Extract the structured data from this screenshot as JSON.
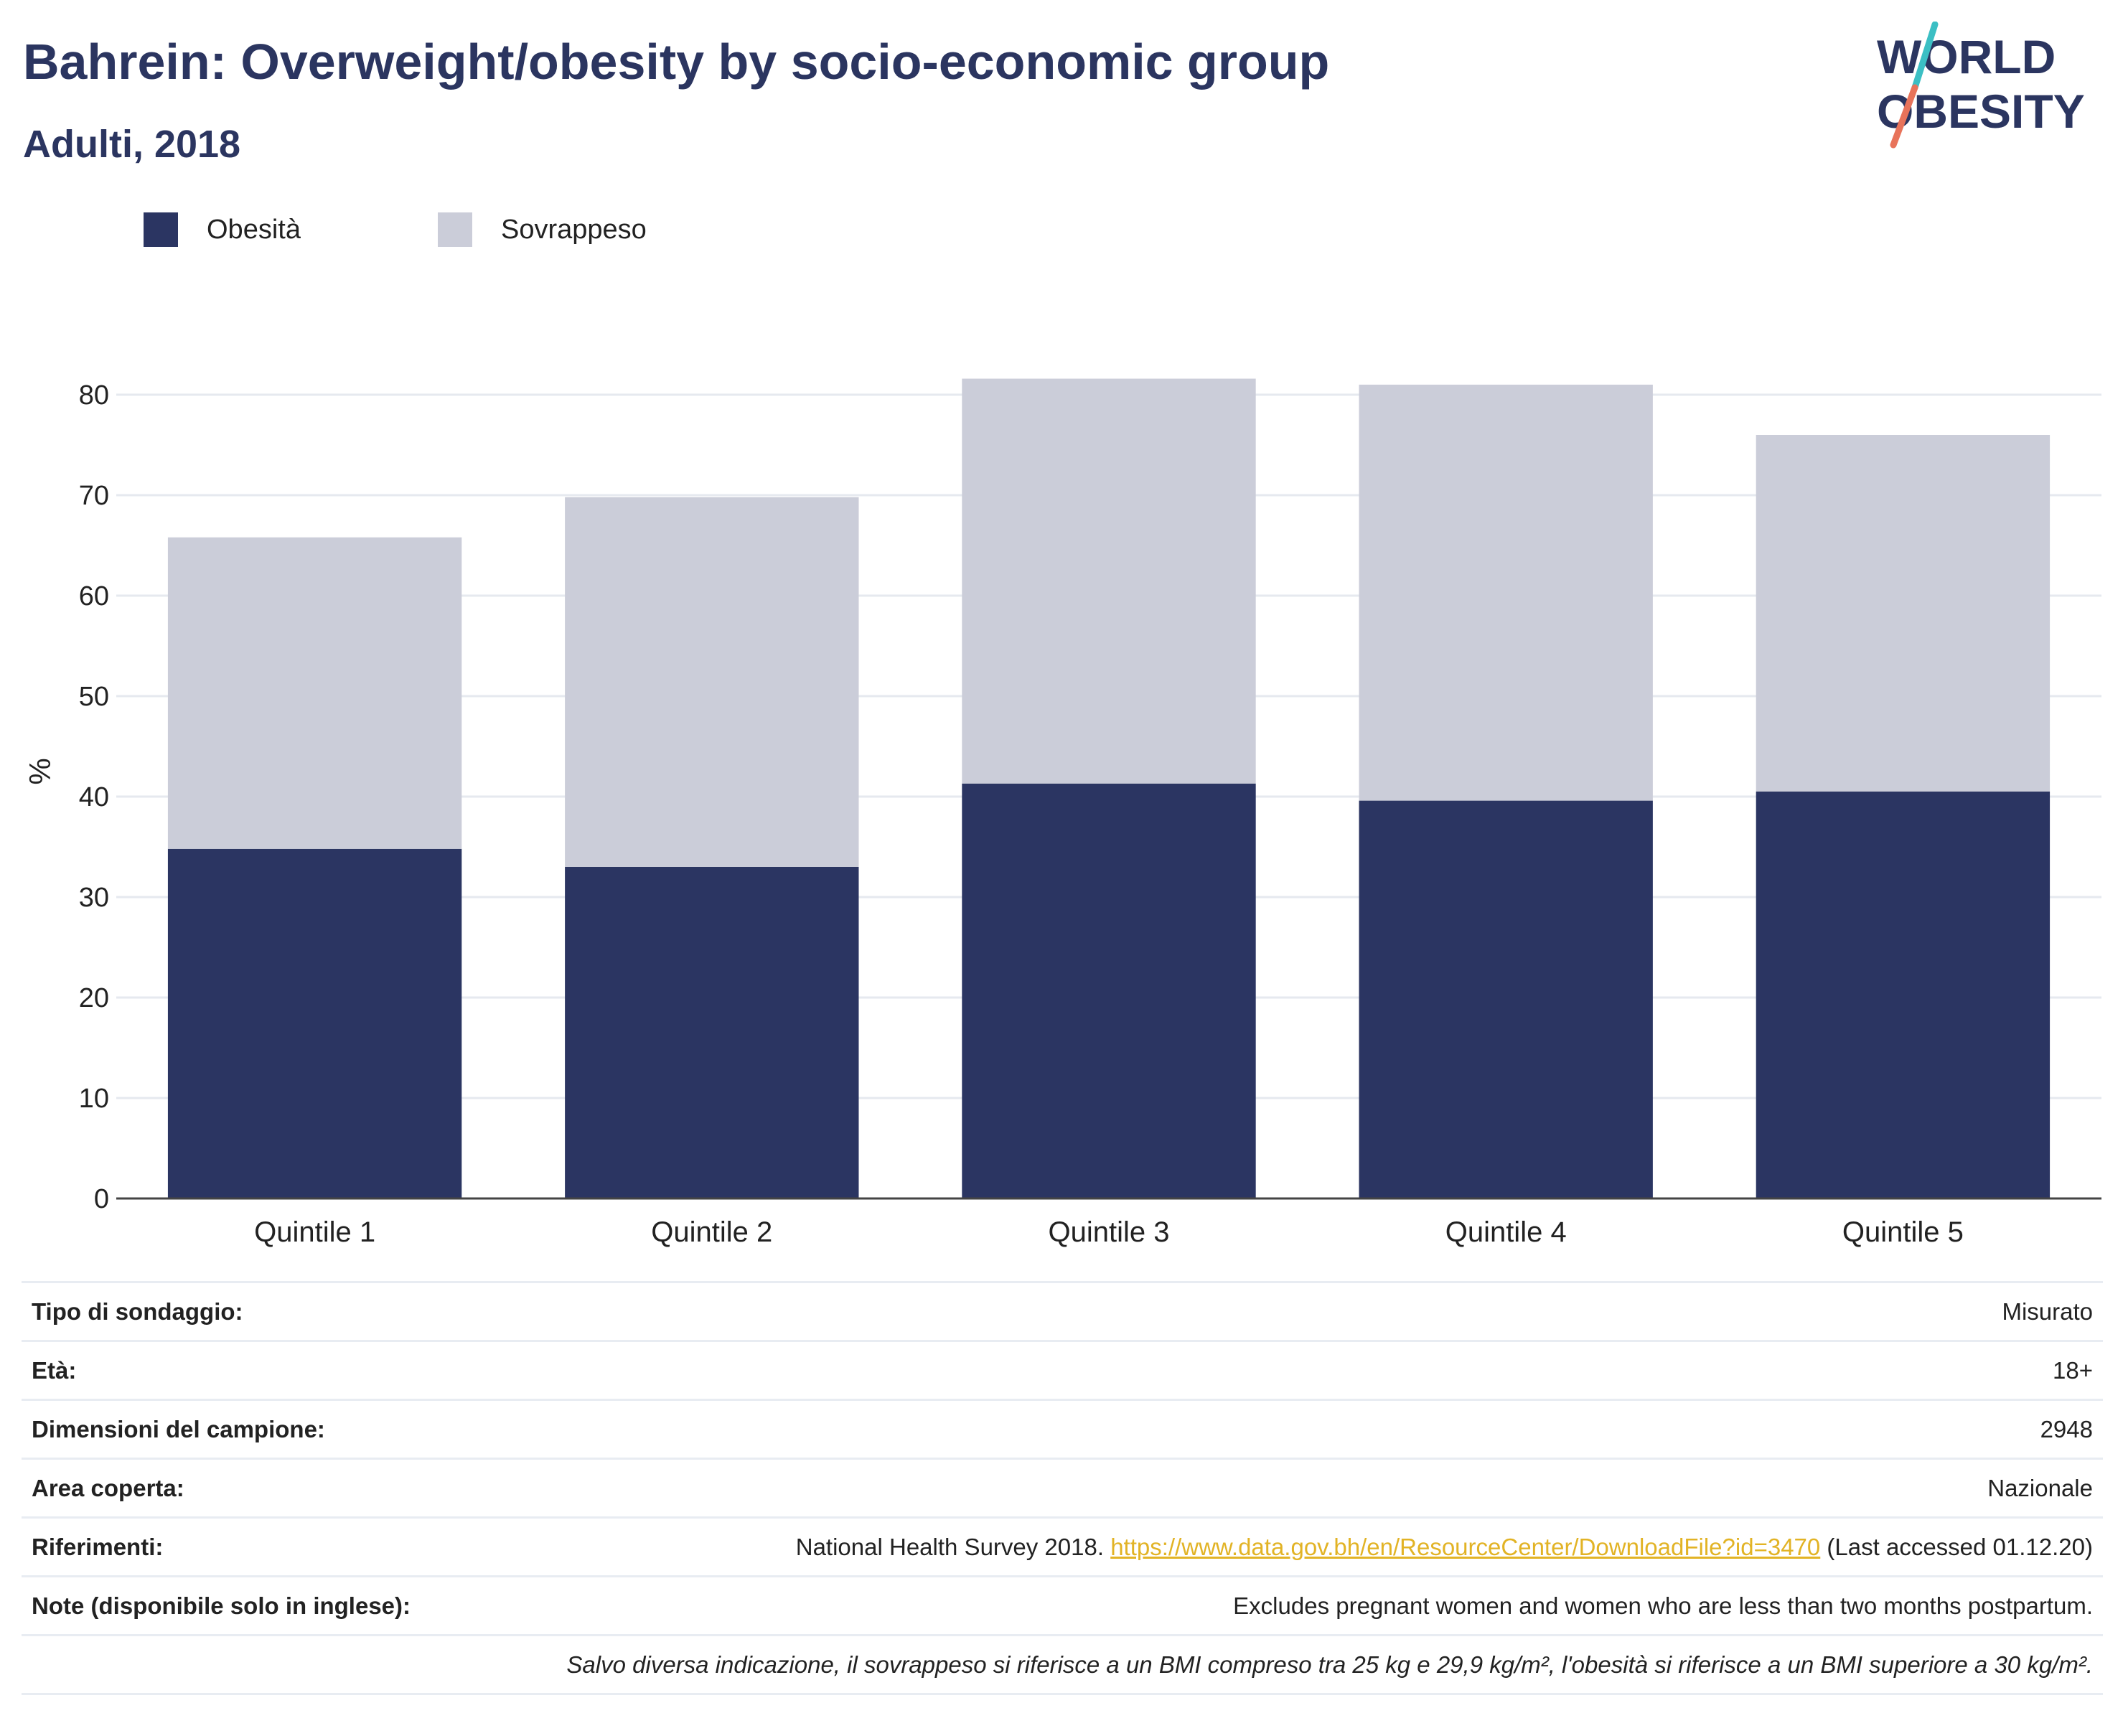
{
  "header": {
    "title": "Bahrein: Overweight/obesity by socio-economic group",
    "subtitle": "Adulti, 2018"
  },
  "logo": {
    "line1": "WORLD",
    "line2": "OBESITY"
  },
  "legend": [
    {
      "label": "Obesità",
      "color": "#2b3562"
    },
    {
      "label": "Sovrappeso",
      "color": "#cbcdd9"
    }
  ],
  "chart_data": {
    "type": "bar",
    "stacked": true,
    "categories": [
      "Quintile 1",
      "Quintile 2",
      "Quintile 3",
      "Quintile 4",
      "Quintile 5"
    ],
    "series": [
      {
        "name": "Obesità",
        "color": "#2b3562",
        "values": [
          34.8,
          33.0,
          41.3,
          39.6,
          40.5
        ]
      },
      {
        "name": "Sovrappeso",
        "color": "#cbcdd9",
        "values": [
          31.0,
          36.8,
          40.3,
          41.4,
          35.5
        ]
      }
    ],
    "ylabel": "%",
    "ylim": [
      0,
      85
    ],
    "yticks": [
      0,
      10,
      20,
      30,
      40,
      50,
      60,
      70,
      80
    ],
    "grid": true,
    "legend_position": "top-left"
  },
  "info": {
    "rows": [
      {
        "label": "Tipo di sondaggio:",
        "value": "Misurato"
      },
      {
        "label": "Età:",
        "value": "18+"
      },
      {
        "label": "Dimensioni del campione:",
        "value": "2948"
      },
      {
        "label": "Area coperta:",
        "value": "Nazionale"
      }
    ],
    "reference": {
      "label": "Riferimenti:",
      "prefix": "National Health Survey 2018. ",
      "link": "https://www.data.gov.bh/en/ResourceCenter/DownloadFile?id=3470",
      "suffix": " (Last accessed 01.12.20)"
    },
    "notes": {
      "label": "Note (disponibile solo in inglese):",
      "value": "Excludes pregnant women and women who are less than two months postpartum."
    },
    "footnote": "Salvo diversa indicazione, il sovrappeso si riferisce a un BMI compreso tra 25 kg e 29,9 kg/m², l'obesità si riferisce a un BMI superiore a 30 kg/m²."
  }
}
